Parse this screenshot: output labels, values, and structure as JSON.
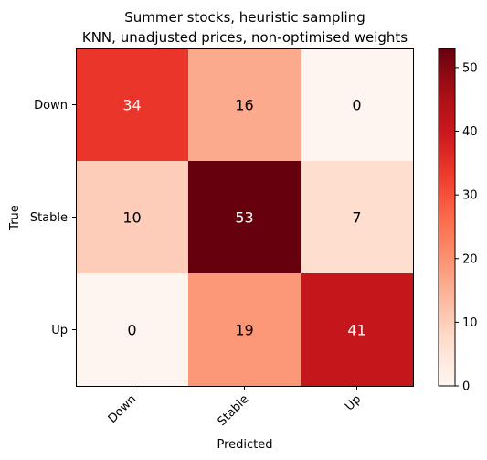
{
  "chart_data": {
    "type": "heatmap",
    "title": "Summer stocks, heuristic sampling",
    "subtitle": "KNN, unadjusted prices, non-optimised weights",
    "xlabel": "Predicted",
    "ylabel": "True",
    "x_categories": [
      "Down",
      "Stable",
      "Up"
    ],
    "y_categories": [
      "Down",
      "Stable",
      "Up"
    ],
    "values": [
      [
        34,
        16,
        0
      ],
      [
        10,
        53,
        7
      ],
      [
        0,
        19,
        41
      ]
    ],
    "colormap": "Reds",
    "color_range": [
      0,
      53
    ],
    "colorbar_ticks": [
      "0",
      "10",
      "20",
      "30",
      "40",
      "50"
    ]
  }
}
